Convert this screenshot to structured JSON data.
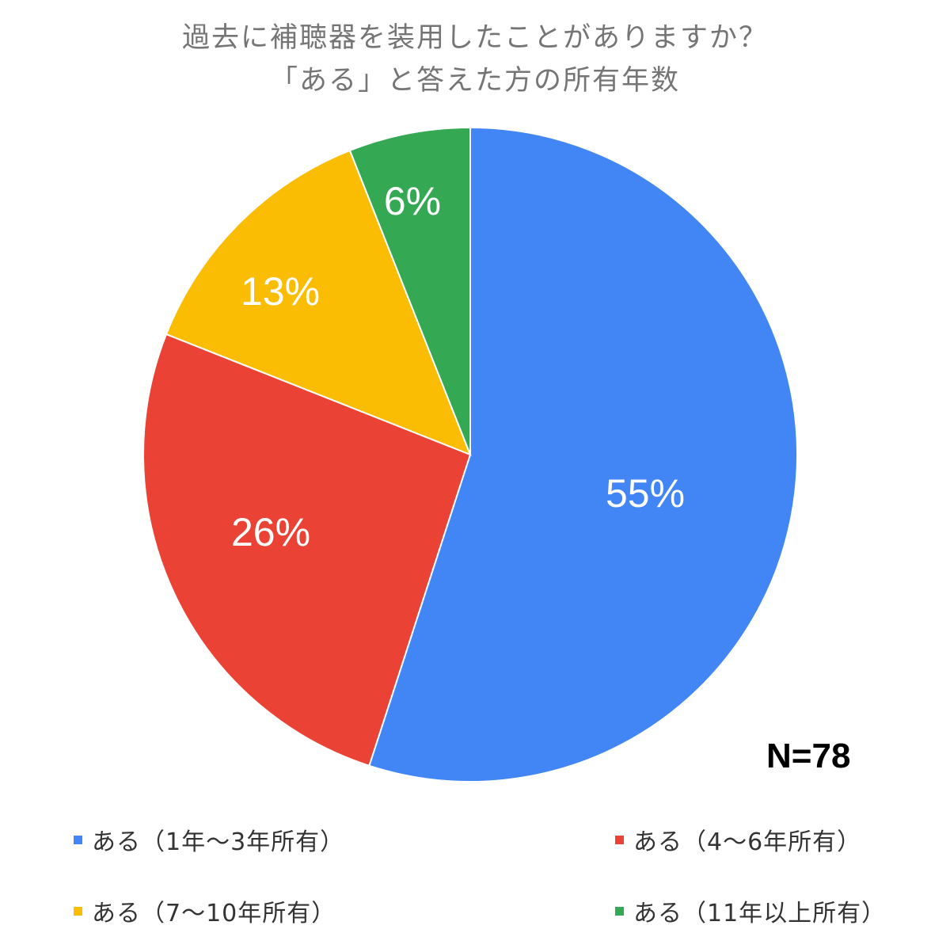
{
  "chart_data": {
    "type": "pie",
    "title_lines": [
      "過去に補聴器を装用したことがありますか？",
      "「ある」と答えた方の所有年数"
    ],
    "sample_size_label": "N=78",
    "slices": [
      {
        "name": "ある（1年〜3年所有）",
        "value": 55,
        "label": "55%",
        "color": "#4285f4"
      },
      {
        "name": "ある（4〜6年所有）",
        "value": 26,
        "label": "26%",
        "color": "#ea4335"
      },
      {
        "name": "ある（7〜10年所有）",
        "value": 13,
        "label": "13%",
        "color": "#fbbc04"
      },
      {
        "name": "ある（11年以上所有）",
        "value": 6,
        "label": "6%",
        "color": "#34a853"
      }
    ],
    "legend_placement": "bottom"
  }
}
